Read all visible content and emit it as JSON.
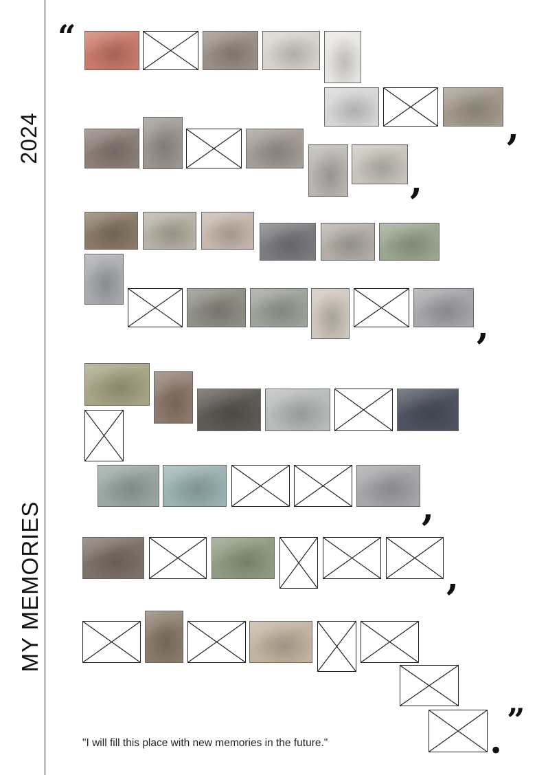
{
  "page": {
    "year": "2024",
    "title": "MY MEMORIES",
    "open_quote": "“",
    "close_quote": "”",
    "comma": ",",
    "period": ".",
    "footer_quote": "\"I will fill this place with new memories in the future.\""
  },
  "colors": {
    "line": "#222222",
    "placeholder_border": "#222222",
    "background": "#ffffff"
  },
  "tiles": [
    {
      "kind": "photo",
      "subject": "colorful knitted patchwork blanket",
      "tone": "#c97a6a"
    },
    {
      "kind": "empty"
    },
    {
      "kind": "photo",
      "subject": "toddler with pigtails",
      "tone": "#9a8f86"
    },
    {
      "kind": "photo",
      "subject": "sketchbook doodles",
      "tone": "#d8d4cc"
    },
    {
      "kind": "photo",
      "subject": "handwritten letter",
      "tone": "#e8e6e2"
    },
    {
      "kind": "photo",
      "subject": "stickers and photo cards",
      "tone": "#d6d6d6"
    },
    {
      "kind": "empty"
    },
    {
      "kind": "photo",
      "subject": "orange cat on steps",
      "tone": "#a39a8c"
    },
    {
      "kind": "photo",
      "subject": "selfie with small dog",
      "tone": "#8c7f78"
    },
    {
      "kind": "photo",
      "subject": "portrait in white dress",
      "tone": "#9d9690"
    },
    {
      "kind": "empty"
    },
    {
      "kind": "photo",
      "subject": "dog close-up",
      "tone": "#a49c95"
    },
    {
      "kind": "photo",
      "subject": "flower by window",
      "tone": "#b9b6b1"
    },
    {
      "kind": "photo",
      "subject": "hanging ornament",
      "tone": "#c9c4bc"
    },
    {
      "kind": "photo",
      "subject": "hair highlight close-up",
      "tone": "#8a7a66"
    },
    {
      "kind": "photo",
      "subject": "plant in vase",
      "tone": "#b7b2a4"
    },
    {
      "kind": "photo",
      "subject": "waffle dessert plate",
      "tone": "#c7b8ad"
    },
    {
      "kind": "photo",
      "subject": "city street at dusk",
      "tone": "#7b7c7f"
    },
    {
      "kind": "photo",
      "subject": "dog on bed",
      "tone": "#b4aea7"
    },
    {
      "kind": "photo",
      "subject": "park with city skyline",
      "tone": "#9aa790"
    },
    {
      "kind": "photo",
      "subject": "snowy night street",
      "tone": "#a8aaae"
    },
    {
      "kind": "empty"
    },
    {
      "kind": "photo",
      "subject": "mirror selfie",
      "tone": "#8f8f86"
    },
    {
      "kind": "photo",
      "subject": "reed field lake",
      "tone": "#9ea39a"
    },
    {
      "kind": "photo",
      "subject": "printed document in hand",
      "tone": "#cfc6bd"
    },
    {
      "kind": "empty"
    },
    {
      "kind": "photo",
      "subject": "grass field sunset",
      "tone": "#a8a6aa"
    },
    {
      "kind": "photo",
      "subject": "two kids with books",
      "tone": "#a8a486"
    },
    {
      "kind": "photo",
      "subject": "wrapped gift box",
      "tone": "#8e7a6c"
    },
    {
      "kind": "photo",
      "subject": "spiky craft object",
      "tone": "#5e5a55"
    },
    {
      "kind": "photo",
      "subject": "embroidered card",
      "tone": "#b8bcba"
    },
    {
      "kind": "empty"
    },
    {
      "kind": "photo",
      "subject": "moon through window",
      "tone": "#4e5360"
    },
    {
      "kind": "empty"
    },
    {
      "kind": "photo",
      "subject": "green book on shelf",
      "tone": "#9aa8a3"
    },
    {
      "kind": "photo",
      "subject": "row of book spines",
      "tone": "#9bb3b3"
    },
    {
      "kind": "empty"
    },
    {
      "kind": "empty"
    },
    {
      "kind": "photo",
      "subject": "classroom gathering",
      "tone": "#a6a7a9"
    },
    {
      "kind": "photo",
      "subject": "selfie with dog",
      "tone": "#7d7268"
    },
    {
      "kind": "empty"
    },
    {
      "kind": "photo",
      "subject": "people in flower garden",
      "tone": "#8f9c82"
    },
    {
      "kind": "empty"
    },
    {
      "kind": "empty"
    },
    {
      "kind": "empty"
    },
    {
      "kind": "empty"
    },
    {
      "kind": "photo",
      "subject": "small dog on chair",
      "tone": "#8a7c6b"
    },
    {
      "kind": "empty"
    },
    {
      "kind": "photo",
      "subject": "hand in bed",
      "tone": "#c2b4a0"
    },
    {
      "kind": "empty"
    },
    {
      "kind": "empty"
    },
    {
      "kind": "empty"
    },
    {
      "kind": "empty"
    }
  ]
}
